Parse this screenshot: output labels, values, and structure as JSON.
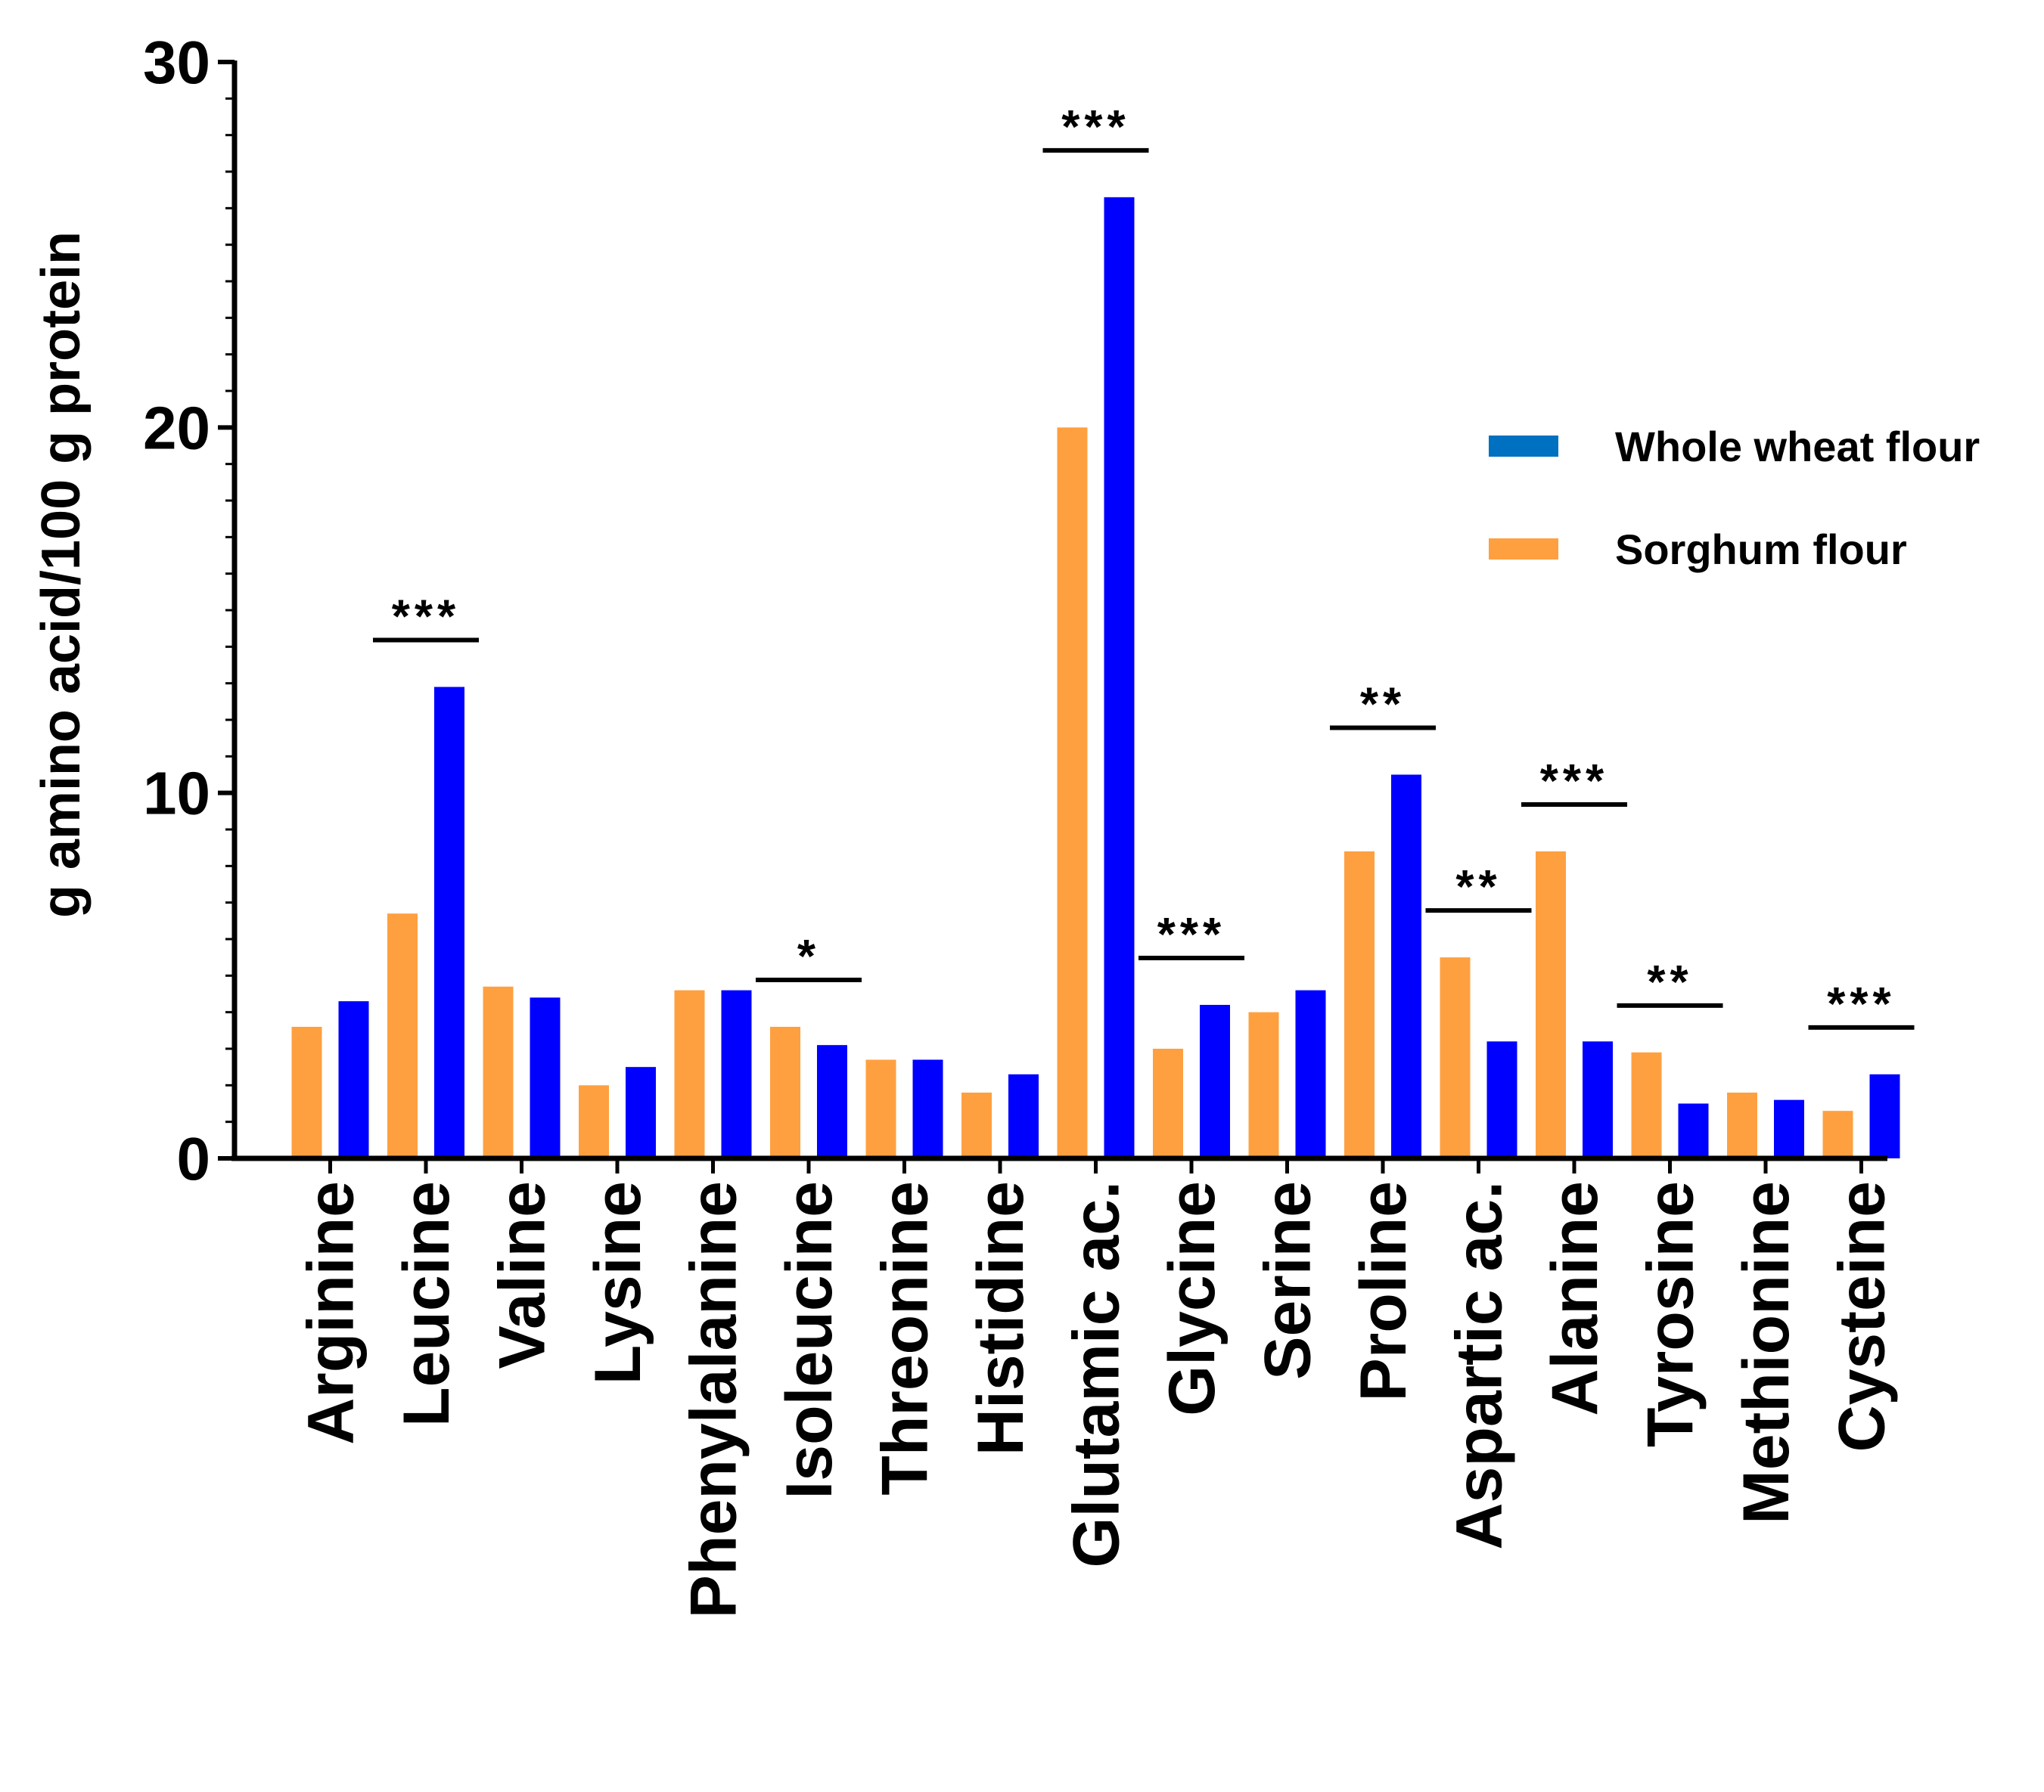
{
  "chart_data": {
    "type": "bar",
    "title": "",
    "xlabel": "",
    "ylabel": "g amino acid/100 g protein",
    "ylim": [
      0,
      30
    ],
    "yticks": [
      0,
      10,
      20,
      30
    ],
    "grid": false,
    "legend_position": "right",
    "categories": [
      "Arginine",
      "Leucine",
      "Valine",
      "Lysine",
      "Phenylalanine",
      "Isoleucine",
      "Threonine",
      "Histidine",
      "Glutamic ac.",
      "Glycine",
      "Serine",
      "Proline",
      "Aspartic ac.",
      "Alanine",
      "Tyrosine",
      "Methionine",
      "Cysteine"
    ],
    "series": [
      {
        "name": "Sorghum flour",
        "color": "#FFA040",
        "values": [
          3.6,
          6.7,
          4.7,
          2.0,
          4.6,
          3.6,
          2.7,
          1.8,
          20.0,
          3.0,
          4.0,
          8.4,
          5.5,
          8.4,
          2.9,
          1.8,
          1.3
        ]
      },
      {
        "name": "Whole wheat flour",
        "color": "#0000FF",
        "values": [
          4.3,
          12.9,
          4.4,
          2.5,
          4.6,
          3.1,
          2.7,
          2.3,
          26.3,
          4.2,
          4.6,
          10.5,
          3.2,
          3.2,
          1.5,
          1.6,
          2.3
        ]
      }
    ],
    "legend": [
      {
        "label": "Whole wheat flour",
        "color": "#0070C0"
      },
      {
        "label": "Sorghum flour",
        "color": "#FFA040"
      }
    ],
    "significance": [
      {
        "category": "Leucine",
        "label": "***"
      },
      {
        "category": "Isoleucine",
        "label": "*"
      },
      {
        "category": "Glutamic ac.",
        "label": "***"
      },
      {
        "category": "Glycine",
        "label": "***"
      },
      {
        "category": "Proline",
        "label": "**"
      },
      {
        "category": "Aspartic ac.",
        "label": "**"
      },
      {
        "category": "Alanine",
        "label": "***"
      },
      {
        "category": "Tyrosine",
        "label": "**"
      },
      {
        "category": "Cysteine",
        "label": "***"
      }
    ]
  }
}
